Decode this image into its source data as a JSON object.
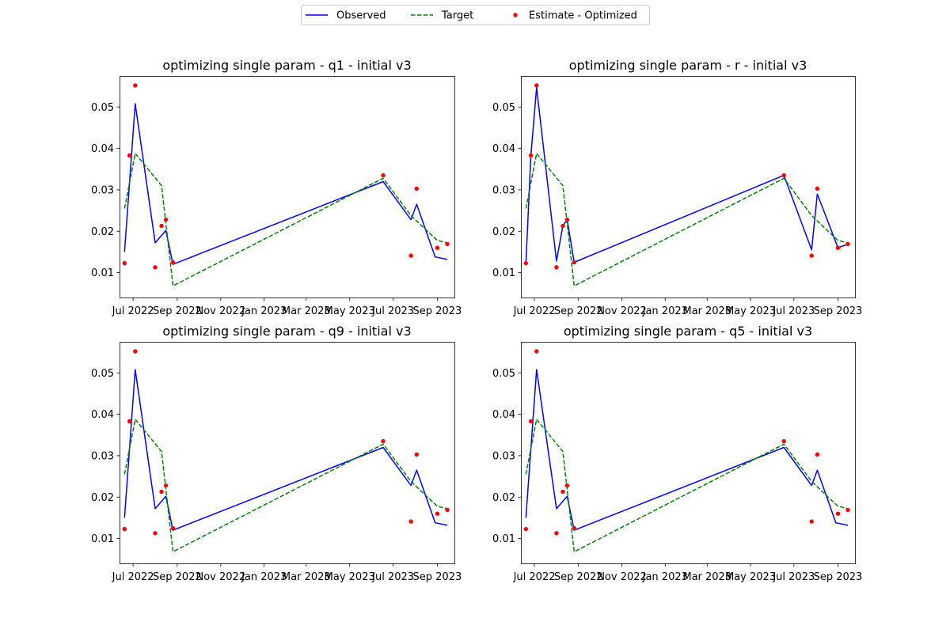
{
  "legend": {
    "location": "upper center",
    "entries": [
      {
        "label": "Observed",
        "color": "#0000ff",
        "style": "solid line"
      },
      {
        "label": "Target",
        "color": "#008000",
        "style": "dashed line"
      },
      {
        "label": "Estimate - Optimized",
        "color": "#ff0000",
        "style": "dot"
      }
    ]
  },
  "chart_data": [
    {
      "type": "line",
      "title": "optimizing single param - q1 - initial v3",
      "x_axis": "date",
      "x_ticks": [
        "2022-07-01",
        "2022-09-01",
        "2022-11-01",
        "2023-01-01",
        "2023-03-01",
        "2023-05-01",
        "2023-07-01",
        "2023-09-01"
      ],
      "x_tick_labels": [
        "Jul 2022",
        "Sep 2022",
        "Nov 2022",
        "Jan 2023",
        "Mar 2023",
        "May 2023",
        "Jul 2023",
        "Sep 2023"
      ],
      "x_lim": [
        "2022-06-12",
        "2023-09-25"
      ],
      "y_ticks": [
        0.01,
        0.02,
        0.03,
        0.04,
        0.05
      ],
      "y_tick_labels": [
        "0.01",
        "0.02",
        "0.03",
        "0.04",
        "0.05"
      ],
      "ylim": [
        0.004,
        0.0575
      ],
      "grid": false,
      "series": [
        {
          "name": "Observed",
          "color": "#0000ff",
          "dash": "solid",
          "kind": "line",
          "x": [
            "2022-06-19",
            "2022-07-04",
            "2022-08-01",
            "2022-08-16",
            "2022-08-26",
            "2023-06-17",
            "2023-07-26",
            "2023-08-03",
            "2023-08-29",
            "2023-09-15"
          ],
          "y": [
            0.015,
            0.0508,
            0.0172,
            0.0202,
            0.012,
            0.032,
            0.0228,
            0.0265,
            0.0138,
            0.0132
          ]
        },
        {
          "name": "Target",
          "color": "#008000",
          "dash": "dashed",
          "kind": "line",
          "x": [
            "2022-06-19",
            "2022-07-04",
            "2022-08-10",
            "2022-08-26",
            "2023-06-17",
            "2023-07-26",
            "2023-08-15",
            "2023-09-01",
            "2023-09-15"
          ],
          "y": [
            0.0255,
            0.0388,
            0.031,
            0.0068,
            0.0328,
            0.0238,
            0.0205,
            0.0178,
            0.0172
          ]
        },
        {
          "name": "Estimate - Optimized",
          "color": "#ff0000",
          "kind": "scatter",
          "x": [
            "2022-06-19",
            "2022-06-26",
            "2022-07-04",
            "2022-08-01",
            "2022-08-10",
            "2022-08-16",
            "2022-08-26",
            "2023-06-17",
            "2023-07-26",
            "2023-08-03",
            "2023-09-01",
            "2023-09-15"
          ],
          "y": [
            0.0123,
            0.0383,
            0.0552,
            0.0113,
            0.0213,
            0.0228,
            0.0125,
            0.0335,
            0.0141,
            0.0303,
            0.016,
            0.0169
          ]
        }
      ]
    },
    {
      "type": "line",
      "title": "optimizing single param - r - initial v3",
      "x_axis": "date",
      "x_ticks": [
        "2022-07-01",
        "2022-09-01",
        "2022-11-01",
        "2023-01-01",
        "2023-03-01",
        "2023-05-01",
        "2023-07-01",
        "2023-09-01"
      ],
      "x_tick_labels": [
        "Jul 2022",
        "Sep 2022",
        "Nov 2022",
        "Jan 2023",
        "Mar 2023",
        "May 2023",
        "Jul 2023",
        "Sep 2023"
      ],
      "x_lim": [
        "2022-06-12",
        "2023-09-25"
      ],
      "y_ticks": [
        0.01,
        0.02,
        0.03,
        0.04,
        0.05
      ],
      "y_tick_labels": [
        "0.01",
        "0.02",
        "0.03",
        "0.04",
        "0.05"
      ],
      "ylim": [
        0.004,
        0.0575
      ],
      "grid": false,
      "series": [
        {
          "name": "Observed",
          "color": "#0000ff",
          "dash": "solid",
          "kind": "line",
          "x": [
            "2022-06-19",
            "2022-06-26",
            "2022-07-04",
            "2022-08-01",
            "2022-08-10",
            "2022-08-16",
            "2022-08-26",
            "2023-06-17",
            "2023-07-26",
            "2023-08-03",
            "2023-09-01",
            "2023-09-15"
          ],
          "y": [
            0.0123,
            0.0383,
            0.0547,
            0.0128,
            0.0213,
            0.0228,
            0.0125,
            0.0335,
            0.0155,
            0.029,
            0.016,
            0.0169
          ]
        },
        {
          "name": "Target",
          "color": "#008000",
          "dash": "dashed",
          "kind": "line",
          "x": [
            "2022-06-19",
            "2022-07-04",
            "2022-08-10",
            "2022-08-26",
            "2023-06-17",
            "2023-07-26",
            "2023-08-15",
            "2023-09-01",
            "2023-09-15"
          ],
          "y": [
            0.0255,
            0.0388,
            0.031,
            0.0068,
            0.0328,
            0.0238,
            0.0205,
            0.0178,
            0.0172
          ]
        },
        {
          "name": "Estimate - Optimized",
          "color": "#ff0000",
          "kind": "scatter",
          "x": [
            "2022-06-19",
            "2022-06-26",
            "2022-07-04",
            "2022-08-01",
            "2022-08-10",
            "2022-08-16",
            "2022-08-26",
            "2023-06-17",
            "2023-07-26",
            "2023-08-03",
            "2023-09-01",
            "2023-09-15"
          ],
          "y": [
            0.0123,
            0.0383,
            0.0552,
            0.0113,
            0.0213,
            0.0228,
            0.0125,
            0.0335,
            0.0141,
            0.0303,
            0.016,
            0.0169
          ]
        }
      ]
    },
    {
      "type": "line",
      "title": "optimizing single param - q9 - initial v3",
      "x_axis": "date",
      "x_ticks": [
        "2022-07-01",
        "2022-09-01",
        "2022-11-01",
        "2023-01-01",
        "2023-03-01",
        "2023-05-01",
        "2023-07-01",
        "2023-09-01"
      ],
      "x_tick_labels": [
        "Jul 2022",
        "Sep 2022",
        "Nov 2022",
        "Jan 2023",
        "Mar 2023",
        "May 2023",
        "Jul 2023",
        "Sep 2023"
      ],
      "x_lim": [
        "2022-06-12",
        "2023-09-25"
      ],
      "y_ticks": [
        0.01,
        0.02,
        0.03,
        0.04,
        0.05
      ],
      "y_tick_labels": [
        "0.01",
        "0.02",
        "0.03",
        "0.04",
        "0.05"
      ],
      "ylim": [
        0.004,
        0.0575
      ],
      "grid": false,
      "series": [
        {
          "name": "Observed",
          "color": "#0000ff",
          "dash": "solid",
          "kind": "line",
          "x": [
            "2022-06-19",
            "2022-07-04",
            "2022-08-01",
            "2022-08-16",
            "2022-08-26",
            "2023-06-17",
            "2023-07-26",
            "2023-08-03",
            "2023-08-29",
            "2023-09-15"
          ],
          "y": [
            0.015,
            0.0508,
            0.0172,
            0.0202,
            0.012,
            0.032,
            0.0228,
            0.0265,
            0.0138,
            0.0132
          ]
        },
        {
          "name": "Target",
          "color": "#008000",
          "dash": "dashed",
          "kind": "line",
          "x": [
            "2022-06-19",
            "2022-07-04",
            "2022-08-10",
            "2022-08-26",
            "2023-06-17",
            "2023-07-26",
            "2023-08-15",
            "2023-09-01",
            "2023-09-15"
          ],
          "y": [
            0.0255,
            0.0388,
            0.031,
            0.0068,
            0.0328,
            0.0238,
            0.0205,
            0.0178,
            0.0172
          ]
        },
        {
          "name": "Estimate - Optimized",
          "color": "#ff0000",
          "kind": "scatter",
          "x": [
            "2022-06-19",
            "2022-06-26",
            "2022-07-04",
            "2022-08-01",
            "2022-08-10",
            "2022-08-16",
            "2022-08-26",
            "2023-06-17",
            "2023-07-26",
            "2023-08-03",
            "2023-09-01",
            "2023-09-15"
          ],
          "y": [
            0.0123,
            0.0383,
            0.0552,
            0.0113,
            0.0213,
            0.0228,
            0.0125,
            0.0335,
            0.0141,
            0.0303,
            0.016,
            0.0169
          ]
        }
      ]
    },
    {
      "type": "line",
      "title": "optimizing single param - q5 - initial v3",
      "x_axis": "date",
      "x_ticks": [
        "2022-07-01",
        "2022-09-01",
        "2022-11-01",
        "2023-01-01",
        "2023-03-01",
        "2023-05-01",
        "2023-07-01",
        "2023-09-01"
      ],
      "x_tick_labels": [
        "Jul 2022",
        "Sep 2022",
        "Nov 2022",
        "Jan 2023",
        "Mar 2023",
        "May 2023",
        "Jul 2023",
        "Sep 2023"
      ],
      "x_lim": [
        "2022-06-12",
        "2023-09-25"
      ],
      "y_ticks": [
        0.01,
        0.02,
        0.03,
        0.04,
        0.05
      ],
      "y_tick_labels": [
        "0.01",
        "0.02",
        "0.03",
        "0.04",
        "0.05"
      ],
      "ylim": [
        0.004,
        0.0575
      ],
      "grid": false,
      "series": [
        {
          "name": "Observed",
          "color": "#0000ff",
          "dash": "solid",
          "kind": "line",
          "x": [
            "2022-06-19",
            "2022-07-04",
            "2022-08-01",
            "2022-08-16",
            "2022-08-26",
            "2023-06-17",
            "2023-07-26",
            "2023-08-03",
            "2023-08-29",
            "2023-09-15"
          ],
          "y": [
            0.015,
            0.0508,
            0.0172,
            0.0202,
            0.012,
            0.032,
            0.0228,
            0.0265,
            0.0138,
            0.0132
          ]
        },
        {
          "name": "Target",
          "color": "#008000",
          "dash": "dashed",
          "kind": "line",
          "x": [
            "2022-06-19",
            "2022-07-04",
            "2022-08-10",
            "2022-08-26",
            "2023-06-17",
            "2023-07-26",
            "2023-08-15",
            "2023-09-01",
            "2023-09-15"
          ],
          "y": [
            0.0255,
            0.0388,
            0.031,
            0.0068,
            0.0328,
            0.0238,
            0.0205,
            0.0178,
            0.0172
          ]
        },
        {
          "name": "Estimate - Optimized",
          "color": "#ff0000",
          "kind": "scatter",
          "x": [
            "2022-06-19",
            "2022-06-26",
            "2022-07-04",
            "2022-08-01",
            "2022-08-10",
            "2022-08-16",
            "2022-08-26",
            "2023-06-17",
            "2023-07-26",
            "2023-08-03",
            "2023-09-01",
            "2023-09-15"
          ],
          "y": [
            0.0123,
            0.0383,
            0.0552,
            0.0113,
            0.0213,
            0.0228,
            0.0125,
            0.0335,
            0.0141,
            0.0303,
            0.016,
            0.0169
          ]
        }
      ]
    }
  ]
}
